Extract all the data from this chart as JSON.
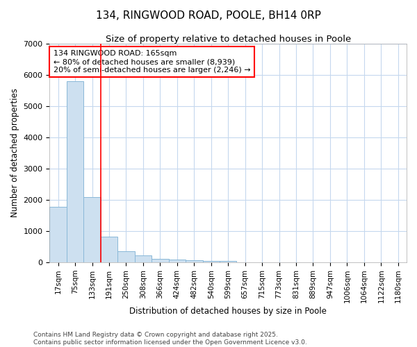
{
  "title": "134, RINGWOOD ROAD, POOLE, BH14 0RP",
  "subtitle": "Size of property relative to detached houses in Poole",
  "xlabel": "Distribution of detached houses by size in Poole",
  "ylabel": "Number of detached properties",
  "categories": [
    "17sqm",
    "75sqm",
    "133sqm",
    "191sqm",
    "250sqm",
    "308sqm",
    "366sqm",
    "424sqm",
    "482sqm",
    "540sqm",
    "599sqm",
    "657sqm",
    "715sqm",
    "773sqm",
    "831sqm",
    "889sqm",
    "947sqm",
    "1006sqm",
    "1064sqm",
    "1122sqm",
    "1180sqm"
  ],
  "values": [
    1780,
    5800,
    2090,
    820,
    360,
    220,
    105,
    80,
    60,
    50,
    35,
    0,
    0,
    0,
    0,
    0,
    0,
    0,
    0,
    0,
    0
  ],
  "bar_color": "#cde0f0",
  "bar_edge_color": "#8ab8d8",
  "red_line_x": 2.5,
  "annotation_text": "134 RINGWOOD ROAD: 165sqm\n← 80% of detached houses are smaller (8,939)\n20% of semi-detached houses are larger (2,246) →",
  "annotation_box_color": "white",
  "annotation_box_edge_color": "red",
  "ylim": [
    0,
    7000
  ],
  "yticks": [
    0,
    1000,
    2000,
    3000,
    4000,
    5000,
    6000,
    7000
  ],
  "grid_color": "#c5d8ee",
  "background_color": "#ffffff",
  "footer_line1": "Contains HM Land Registry data © Crown copyright and database right 2025.",
  "footer_line2": "Contains public sector information licensed under the Open Government Licence v3.0.",
  "title_fontsize": 11,
  "subtitle_fontsize": 9.5,
  "label_fontsize": 8.5,
  "tick_fontsize": 7.5,
  "annotation_fontsize": 8,
  "footer_fontsize": 6.5
}
